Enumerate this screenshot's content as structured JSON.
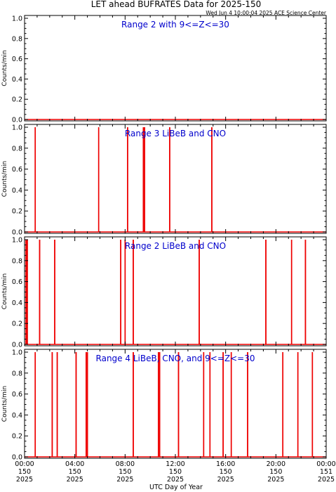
{
  "title": "LET ahead BUFRATES Data for 2025-150",
  "timestamp": "Wed Jun  4 10:00:04 2025 ACE Science Center",
  "xlabel": "UTC Day of Year",
  "colors": {
    "data": "#ee0000",
    "panel_label": "#0000cc",
    "axis": "#000000"
  },
  "x_ticks": [
    {
      "time": "00:00",
      "day": "150",
      "year": "2025"
    },
    {
      "time": "04:00",
      "day": "150",
      "year": "2025"
    },
    {
      "time": "08:00",
      "day": "150",
      "year": "2025"
    },
    {
      "time": "12:00",
      "day": "150",
      "year": "2025"
    },
    {
      "time": "16:00",
      "day": "150",
      "year": "2025"
    },
    {
      "time": "20:00",
      "day": "150",
      "year": "2025"
    },
    {
      "time": "00:00",
      "day": "151",
      "year": "2025"
    }
  ],
  "chart_data": [
    {
      "type": "line",
      "title": "Range 2 with 9<=Z<=30",
      "ylabel": "Counts/min",
      "xlim_hours": [
        0,
        24
      ],
      "ylim": [
        0,
        1.0
      ],
      "yticks": [
        "0.0",
        "0.2",
        "0.4",
        "0.6",
        "0.8",
        "1.0"
      ],
      "spikes_hours": []
    },
    {
      "type": "line",
      "title": "Range 3 LiBeB and CNO",
      "ylabel": "Counts/min",
      "xlim_hours": [
        0,
        24
      ],
      "ylim": [
        0,
        1.0
      ],
      "yticks": [
        "0.0",
        "0.2",
        "0.4",
        "0.6",
        "0.8",
        "1.0"
      ],
      "spikes_hours": [
        0.85,
        5.9,
        8.2,
        9.45,
        9.55,
        11.55,
        14.9
      ]
    },
    {
      "type": "line",
      "title": "Range 2 LiBeB and CNO",
      "ylabel": "Counts/min",
      "xlim_hours": [
        0,
        24
      ],
      "ylim": [
        0,
        1.0
      ],
      "yticks": [
        "0.0",
        "0.2",
        "0.4",
        "0.6",
        "0.8",
        "1.0"
      ],
      "spikes_hours": [
        0.12,
        0.22,
        1.2,
        2.4,
        7.65,
        8.0,
        8.65,
        13.9,
        19.2,
        21.25,
        22.35
      ]
    },
    {
      "type": "line",
      "title": "Range 4 LiBeB, CNO, and 9<=Z<=30",
      "ylabel": "Counts/min",
      "xlim_hours": [
        0,
        24
      ],
      "ylim": [
        0,
        1.0
      ],
      "yticks": [
        "0.0",
        "0.2",
        "0.4",
        "0.6",
        "0.8",
        "1.0"
      ],
      "spikes_hours": [
        0.85,
        2.2,
        2.6,
        4.1,
        4.9,
        5.0,
        8.65,
        10.65,
        10.75,
        12.25,
        14.25,
        14.75,
        15.8,
        16.45,
        17.75,
        20.55,
        21.75,
        22.9
      ]
    }
  ]
}
